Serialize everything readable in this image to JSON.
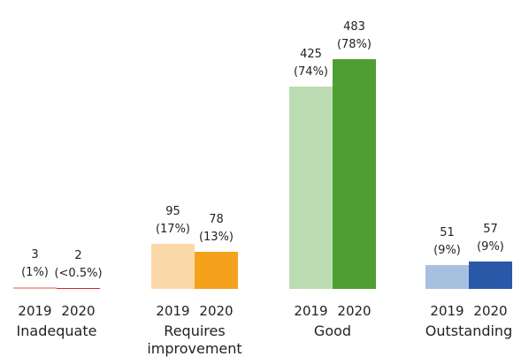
{
  "chart_data": {
    "type": "bar",
    "categories": [
      "Inadequate",
      "Requires improvement",
      "Good",
      "Outstanding"
    ],
    "series": [
      {
        "name": "2019",
        "colors": [
          "#f0a8a0",
          "#fbd8a8",
          "#bcdcb4",
          "#a8c0e0"
        ],
        "values": [
          3,
          95,
          425,
          51
        ],
        "shares": [
          "(1%)",
          "(17%)",
          "(74%)",
          "(9%)"
        ]
      },
      {
        "name": "2020",
        "colors": [
          "#d42a1c",
          "#f4a21c",
          "#4e9e34",
          "#2a58a8"
        ],
        "values": [
          2,
          78,
          483,
          57
        ],
        "shares": [
          "(<0.5%)",
          "(13%)",
          "(78%)",
          "(9%)"
        ]
      }
    ]
  }
}
